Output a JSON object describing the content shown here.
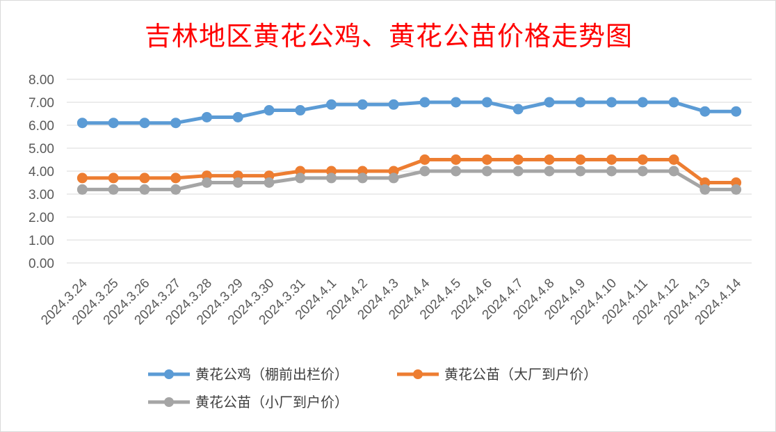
{
  "chart_data": {
    "type": "line",
    "title": "吉林地区黄花公鸡、黄花公苗价格走势图",
    "xlabel": "",
    "ylabel": "",
    "categories": [
      "2024.3.24",
      "2024.3.25",
      "2024.3.26",
      "2024.3.27",
      "2024.3.28",
      "2024.3.29",
      "2024.3.30",
      "2024.3.31",
      "2024.4.1",
      "2024.4.2",
      "2024.4.3",
      "2024.4.4",
      "2024.4.5",
      "2024.4.6",
      "2024.4.7",
      "2024.4.8",
      "2024.4.9",
      "2024.4.10",
      "2024.4.11",
      "2024.4.12",
      "2024.4.13",
      "2024.4.14"
    ],
    "yticks": [
      "0.00",
      "1.00",
      "2.00",
      "3.00",
      "4.00",
      "5.00",
      "6.00",
      "7.00",
      "8.00"
    ],
    "ylim": [
      0,
      8
    ],
    "grid": true,
    "legend_position": "bottom",
    "series": [
      {
        "name": "黄花公鸡（棚前出栏价）",
        "color": "#5b9bd5",
        "values": [
          6.1,
          6.1,
          6.1,
          6.1,
          6.35,
          6.35,
          6.65,
          6.65,
          6.9,
          6.9,
          6.9,
          7.0,
          7.0,
          7.0,
          6.7,
          7.0,
          7.0,
          7.0,
          7.0,
          7.0,
          6.6,
          6.6
        ]
      },
      {
        "name": "黄花公苗（大厂到户价）",
        "color": "#ed7d31",
        "values": [
          3.7,
          3.7,
          3.7,
          3.7,
          3.8,
          3.8,
          3.8,
          4.0,
          4.0,
          4.0,
          4.0,
          4.5,
          4.5,
          4.5,
          4.5,
          4.5,
          4.5,
          4.5,
          4.5,
          4.5,
          3.5,
          3.5
        ]
      },
      {
        "name": "黄花公苗（小厂到户价）",
        "color": "#a5a5a5",
        "values": [
          3.2,
          3.2,
          3.2,
          3.2,
          3.5,
          3.5,
          3.5,
          3.7,
          3.7,
          3.7,
          3.7,
          4.0,
          4.0,
          4.0,
          4.0,
          4.0,
          4.0,
          4.0,
          4.0,
          4.0,
          3.2,
          3.2
        ]
      }
    ]
  }
}
